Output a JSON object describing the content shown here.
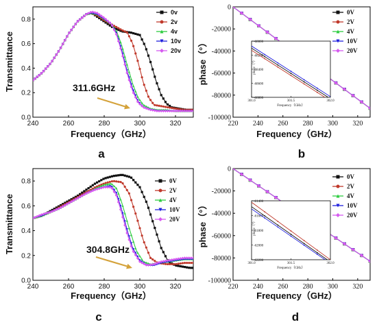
{
  "colors": {
    "0": "#111111",
    "2": "#c0392b",
    "4": "#2ecc40",
    "10": "#1f1fdd",
    "20": "#d65bf0",
    "arrow": "#d4a23a"
  },
  "chart_data": [
    {
      "id": "a",
      "type": "line",
      "panel_label": "a",
      "xlabel": "Frequency（GHz）",
      "ylabel": "Transmittance",
      "xlim": [
        240,
        330
      ],
      "ylim": [
        0.0,
        0.9
      ],
      "xticks": [
        240,
        260,
        280,
        300,
        320
      ],
      "yticks": [
        0.0,
        0.2,
        0.4,
        0.6,
        0.8
      ],
      "ytick_labels": [
        "0.0",
        "0.2",
        "0.4",
        "0.6",
        "0.8"
      ],
      "annotation": "311.6GHz",
      "legend_position": "top-right",
      "series": [
        {
          "name": "0v",
          "color_key": "0",
          "marker": "square",
          "x": [
            240,
            245,
            250,
            255,
            260,
            265,
            270,
            273,
            276,
            280,
            285,
            290,
            295,
            300,
            303,
            306,
            309,
            312,
            315,
            318,
            322,
            326,
            330
          ],
          "y": [
            0.3,
            0.36,
            0.44,
            0.55,
            0.68,
            0.78,
            0.84,
            0.85,
            0.82,
            0.78,
            0.73,
            0.7,
            0.69,
            0.67,
            0.58,
            0.45,
            0.3,
            0.18,
            0.11,
            0.08,
            0.07,
            0.06,
            0.06
          ]
        },
        {
          "name": "2v",
          "color_key": "2",
          "marker": "circle",
          "x": [
            240,
            245,
            250,
            255,
            260,
            265,
            270,
            273,
            276,
            280,
            285,
            290,
            293,
            296,
            299,
            302,
            305,
            308,
            312,
            316,
            320,
            325,
            330
          ],
          "y": [
            0.3,
            0.36,
            0.44,
            0.55,
            0.68,
            0.78,
            0.84,
            0.85,
            0.83,
            0.79,
            0.75,
            0.71,
            0.69,
            0.6,
            0.45,
            0.28,
            0.16,
            0.1,
            0.09,
            0.08,
            0.07,
            0.06,
            0.06
          ]
        },
        {
          "name": "4v",
          "color_key": "4",
          "marker": "triangle-up",
          "x": [
            240,
            245,
            250,
            255,
            260,
            265,
            270,
            273,
            276,
            280,
            284,
            287,
            290,
            293,
            296,
            299,
            302,
            306,
            310,
            315,
            320,
            325,
            330
          ],
          "y": [
            0.3,
            0.36,
            0.44,
            0.55,
            0.68,
            0.78,
            0.84,
            0.85,
            0.84,
            0.8,
            0.76,
            0.7,
            0.58,
            0.42,
            0.27,
            0.16,
            0.1,
            0.07,
            0.06,
            0.06,
            0.05,
            0.05,
            0.05
          ]
        },
        {
          "name": "10v",
          "color_key": "10",
          "marker": "triangle-down",
          "x": [
            240,
            245,
            250,
            255,
            260,
            265,
            270,
            273,
            276,
            280,
            284,
            287,
            290,
            293,
            296,
            299,
            302,
            306,
            310,
            315,
            320,
            325,
            330
          ],
          "y": [
            0.3,
            0.36,
            0.44,
            0.55,
            0.68,
            0.78,
            0.84,
            0.85,
            0.84,
            0.8,
            0.76,
            0.68,
            0.54,
            0.37,
            0.23,
            0.13,
            0.08,
            0.06,
            0.05,
            0.05,
            0.05,
            0.05,
            0.05
          ]
        },
        {
          "name": "20v",
          "color_key": "20",
          "marker": "diamond",
          "x": [
            240,
            245,
            250,
            255,
            260,
            265,
            270,
            273,
            276,
            280,
            284,
            287,
            290,
            293,
            296,
            299,
            302,
            306,
            310,
            315,
            320,
            325,
            330
          ],
          "y": [
            0.3,
            0.36,
            0.44,
            0.55,
            0.68,
            0.78,
            0.84,
            0.86,
            0.85,
            0.81,
            0.76,
            0.67,
            0.52,
            0.35,
            0.21,
            0.12,
            0.08,
            0.06,
            0.05,
            0.05,
            0.05,
            0.05,
            0.05
          ]
        }
      ]
    },
    {
      "id": "b",
      "type": "line",
      "panel_label": "b",
      "xlabel": "Frequency（GHz）",
      "ylabel": "phase（°）",
      "xlim": [
        220,
        330
      ],
      "ylim": [
        -100000,
        0
      ],
      "xticks": [
        220,
        240,
        260,
        280,
        300,
        320
      ],
      "yticks": [
        0,
        -20000,
        -40000,
        -60000,
        -80000,
        -100000
      ],
      "ytick_labels": [
        "0",
        "-20000",
        "-40000",
        "-60000",
        "-80000",
        "-100000"
      ],
      "legend_position": "top-right",
      "series": [
        {
          "name": "0V",
          "color_key": "0",
          "marker": "square",
          "x": [
            220,
            330
          ],
          "y": [
            0,
            -92000
          ]
        },
        {
          "name": "2V",
          "color_key": "2",
          "marker": "circle",
          "x": [
            220,
            330
          ],
          "y": [
            0,
            -92000
          ]
        },
        {
          "name": "4V",
          "color_key": "4",
          "marker": "triangle-up",
          "x": [
            220,
            330
          ],
          "y": [
            0,
            -92000
          ]
        },
        {
          "name": "10V",
          "color_key": "10",
          "marker": "triangle-down",
          "x": [
            220,
            330
          ],
          "y": [
            0,
            -92000
          ]
        },
        {
          "name": "20V",
          "color_key": "20",
          "marker": "diamond",
          "x": [
            220,
            330
          ],
          "y": [
            0,
            -92000
          ]
        }
      ],
      "inset": {
        "xlabel": "Frequency（GHz）",
        "ylabel": "phase（°）",
        "xlim": [
          301.0,
          302.0
        ],
        "ylim": [
          -68800,
          -68000
        ],
        "xticks": [
          301.0,
          301.5,
          302.0
        ],
        "xtick_labels": [
          "301.0",
          "301.5",
          "302.0"
        ],
        "yticks": [
          -68000,
          -68200,
          -68400,
          -68600,
          -68800
        ],
        "ytick_labels": [
          "-68000",
          "-68200",
          "-68400",
          "-68600",
          "-68800"
        ],
        "series": [
          {
            "color_key": "0",
            "x": [
              301.0,
              302.0
            ],
            "y": [
              -68100,
              -68820
            ]
          },
          {
            "color_key": "2",
            "x": [
              301.0,
              302.0
            ],
            "y": [
              -68130,
              -68850
            ]
          },
          {
            "color_key": "10",
            "x": [
              301.0,
              302.0
            ],
            "y": [
              -68070,
              -68790
            ]
          }
        ]
      }
    },
    {
      "id": "c",
      "type": "line",
      "panel_label": "c",
      "xlabel": "Frequency（GHz）",
      "ylabel": "Transmittance",
      "xlim": [
        240,
        330
      ],
      "ylim": [
        0.0,
        0.9
      ],
      "xticks": [
        240,
        260,
        280,
        300,
        320
      ],
      "yticks": [
        0.0,
        0.2,
        0.4,
        0.6,
        0.8
      ],
      "ytick_labels": [
        "0.0",
        "0.2",
        "0.4",
        "0.6",
        "0.8"
      ],
      "annotation": "304.8GHz",
      "legend_position": "right",
      "series": [
        {
          "name": "0V",
          "color_key": "0",
          "marker": "square",
          "x": [
            240,
            245,
            250,
            255,
            260,
            265,
            270,
            275,
            280,
            285,
            290,
            295,
            300,
            304,
            308,
            312,
            316,
            320,
            324,
            328,
            330
          ],
          "y": [
            0.5,
            0.52,
            0.56,
            0.6,
            0.64,
            0.68,
            0.73,
            0.78,
            0.82,
            0.84,
            0.85,
            0.83,
            0.75,
            0.62,
            0.44,
            0.26,
            0.15,
            0.12,
            0.11,
            0.1,
            0.1
          ]
        },
        {
          "name": "2V",
          "color_key": "2",
          "marker": "circle",
          "x": [
            240,
            245,
            250,
            255,
            260,
            265,
            270,
            275,
            280,
            285,
            290,
            294,
            298,
            302,
            306,
            310,
            315,
            320,
            325,
            330
          ],
          "y": [
            0.5,
            0.52,
            0.55,
            0.59,
            0.63,
            0.67,
            0.71,
            0.75,
            0.78,
            0.8,
            0.79,
            0.7,
            0.52,
            0.32,
            0.18,
            0.14,
            0.13,
            0.13,
            0.14,
            0.14
          ]
        },
        {
          "name": "4V",
          "color_key": "4",
          "marker": "triangle-up",
          "x": [
            240,
            245,
            250,
            255,
            260,
            265,
            270,
            275,
            280,
            284,
            287,
            290,
            294,
            298,
            302,
            306,
            310,
            315,
            320,
            325,
            330
          ],
          "y": [
            0.5,
            0.52,
            0.55,
            0.58,
            0.62,
            0.66,
            0.7,
            0.74,
            0.77,
            0.78,
            0.74,
            0.62,
            0.42,
            0.24,
            0.15,
            0.13,
            0.14,
            0.15,
            0.16,
            0.17,
            0.17
          ]
        },
        {
          "name": "10V",
          "color_key": "10",
          "marker": "triangle-down",
          "x": [
            240,
            245,
            250,
            255,
            260,
            265,
            270,
            275,
            280,
            284,
            287,
            290,
            293,
            296,
            300,
            304,
            308,
            312,
            316,
            320,
            325,
            330
          ],
          "y": [
            0.5,
            0.52,
            0.55,
            0.58,
            0.62,
            0.66,
            0.7,
            0.73,
            0.75,
            0.76,
            0.7,
            0.56,
            0.4,
            0.26,
            0.16,
            0.12,
            0.12,
            0.14,
            0.15,
            0.16,
            0.17,
            0.17
          ]
        },
        {
          "name": "20V",
          "color_key": "20",
          "marker": "diamond",
          "x": [
            240,
            245,
            250,
            255,
            260,
            265,
            270,
            275,
            280,
            284,
            287,
            290,
            293,
            296,
            300,
            304,
            308,
            312,
            316,
            320,
            325,
            330
          ],
          "y": [
            0.5,
            0.53,
            0.55,
            0.58,
            0.62,
            0.66,
            0.7,
            0.73,
            0.75,
            0.75,
            0.68,
            0.53,
            0.37,
            0.24,
            0.15,
            0.12,
            0.13,
            0.15,
            0.16,
            0.17,
            0.18,
            0.18
          ]
        }
      ]
    },
    {
      "id": "d",
      "type": "line",
      "panel_label": "d",
      "xlabel": "Frequency（GHz）",
      "ylabel": "phase（°）",
      "xlim": [
        220,
        330
      ],
      "ylim": [
        -100000,
        0
      ],
      "xticks": [
        220,
        240,
        260,
        280,
        300,
        320
      ],
      "yticks": [
        0,
        -20000,
        -40000,
        -60000,
        -80000,
        -100000
      ],
      "ytick_labels": [
        "0",
        "-20000",
        "-40000",
        "-60000",
        "-80000",
        "-100000"
      ],
      "legend_position": "top-right",
      "series": [
        {
          "name": "0V",
          "color_key": "0",
          "marker": "square",
          "x": [
            220,
            330
          ],
          "y": [
            0,
            -83000
          ]
        },
        {
          "name": "2V",
          "color_key": "2",
          "marker": "circle",
          "x": [
            220,
            330
          ],
          "y": [
            0,
            -83000
          ]
        },
        {
          "name": "4V",
          "color_key": "4",
          "marker": "triangle-up",
          "x": [
            220,
            330
          ],
          "y": [
            0,
            -83000
          ]
        },
        {
          "name": "10V",
          "color_key": "10",
          "marker": "triangle-down",
          "x": [
            220,
            330
          ],
          "y": [
            0,
            -83000
          ]
        },
        {
          "name": "20V",
          "color_key": "20",
          "marker": "diamond",
          "x": [
            220,
            330
          ],
          "y": [
            0,
            -83000
          ]
        }
      ],
      "inset": {
        "xlabel": "Frequency（GHz）",
        "ylabel": "phase（°）",
        "xlim": [
          301.0,
          302.0
        ],
        "ylim": [
          -62200,
          -61400
        ],
        "xticks": [
          301.0,
          301.5,
          302.0
        ],
        "xtick_labels": [
          "301.0",
          "301.5",
          "302.0"
        ],
        "yticks": [
          -61400,
          -61600,
          -61800,
          -62000,
          -62200
        ],
        "ytick_labels": [
          "-61400",
          "-61600",
          "-61800",
          "-62000",
          "-62200"
        ],
        "series": [
          {
            "color_key": "2",
            "x": [
              301.0,
              302.0
            ],
            "y": [
              -61420,
              -62200
            ]
          },
          {
            "color_key": "0",
            "x": [
              301.0,
              302.0
            ],
            "y": [
              -61480,
              -62230
            ]
          },
          {
            "color_key": "10",
            "x": [
              301.0,
              302.0
            ],
            "y": [
              -61510,
              -62250
            ]
          }
        ]
      }
    }
  ]
}
